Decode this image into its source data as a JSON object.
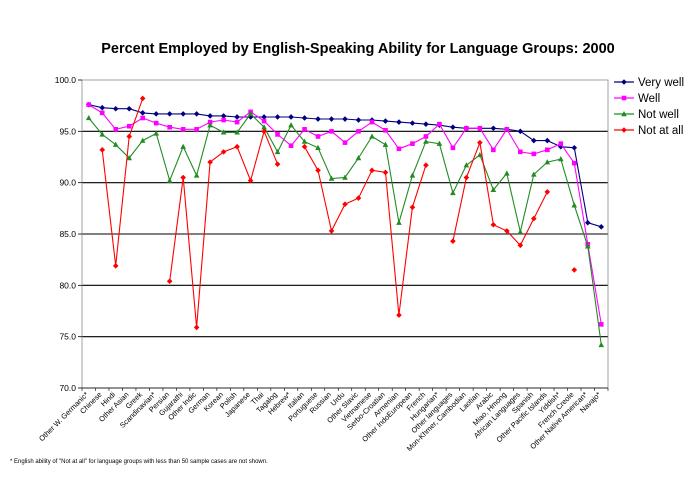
{
  "chart_data": {
    "type": "line",
    "title": "Percent Employed by English-Speaking Ability for Language Groups: 2000",
    "xlabel": "",
    "ylabel": "",
    "ylim": [
      70,
      100
    ],
    "yticks": [
      "70.0",
      "75.0",
      "80.0",
      "85.0",
      "90.0",
      "95.0",
      "100.0"
    ],
    "grid": "horizontal",
    "legend_position": "right",
    "categories": [
      "Other W. Germanic*",
      "Chinese",
      "Hindi",
      "Other Asian",
      "Greek",
      "Scandinavian*",
      "Persian",
      "Gujarathi",
      "Other Indic",
      "German",
      "Korean",
      "Polish",
      "Japanese",
      "Thai",
      "Tagalog",
      "Hebrew*",
      "Italian",
      "Portuguese",
      "Russian",
      "Urdu",
      "Other Slavic",
      "Vietnamese",
      "Serbo-Croatian",
      "Armenian",
      "Other IndoEuropean",
      "French",
      "Hungarian*",
      "Other languages",
      "Mon-Khmer, Cambodian",
      "Laotian",
      "Arabic",
      "Miao, Hmong",
      "African Languages",
      "Spanish",
      "Other Pacific Islands",
      "Yiddish*",
      "French Creole",
      "Other Native American*",
      "Navajo*"
    ],
    "series": [
      {
        "name": "Very well",
        "color": "#000080",
        "marker": "diamond",
        "values": [
          97.6,
          97.3,
          97.2,
          97.2,
          96.8,
          96.7,
          96.7,
          96.7,
          96.7,
          96.5,
          96.5,
          96.4,
          96.4,
          96.4,
          96.4,
          96.4,
          96.3,
          96.2,
          96.2,
          96.2,
          96.1,
          96.1,
          96.0,
          95.9,
          95.8,
          95.7,
          95.6,
          95.4,
          95.3,
          95.3,
          95.3,
          95.2,
          95.0,
          94.1,
          94.1,
          93.5,
          93.4,
          86.1,
          85.7
        ]
      },
      {
        "name": "Well",
        "color": "#FF00FF",
        "marker": "square",
        "values": [
          97.6,
          96.8,
          95.2,
          95.5,
          96.3,
          95.8,
          95.4,
          95.2,
          95.2,
          95.9,
          96.1,
          95.9,
          96.9,
          96.0,
          94.7,
          93.6,
          95.2,
          94.5,
          95.0,
          93.9,
          95.0,
          95.9,
          95.1,
          93.3,
          93.8,
          94.5,
          95.7,
          93.4,
          95.3,
          95.3,
          93.2,
          95.2,
          93.0,
          92.8,
          93.2,
          93.8,
          91.9,
          84.0,
          76.2
        ]
      },
      {
        "name": "Not well",
        "color": "#228B22",
        "marker": "triangle",
        "values": [
          96.3,
          94.7,
          93.7,
          92.4,
          94.1,
          94.8,
          90.2,
          93.5,
          90.7,
          95.6,
          94.9,
          94.9,
          96.7,
          95.4,
          93.0,
          95.6,
          94.0,
          93.4,
          90.4,
          90.5,
          92.4,
          94.5,
          93.7,
          86.1,
          90.7,
          94.0,
          93.8,
          89.0,
          91.7,
          92.7,
          89.3,
          90.9,
          85.2,
          90.8,
          92.0,
          92.3,
          87.8,
          83.8,
          74.2
        ]
      },
      {
        "name": "Not at all",
        "color": "#FF0000",
        "marker": "diamond",
        "values": [
          null,
          93.2,
          81.9,
          94.5,
          98.2,
          null,
          80.4,
          90.5,
          75.9,
          92.0,
          93.0,
          93.5,
          90.2,
          95.0,
          91.8,
          null,
          93.5,
          91.2,
          85.3,
          87.9,
          88.5,
          91.2,
          91.0,
          77.1,
          87.6,
          91.7,
          null,
          84.3,
          90.5,
          93.9,
          85.9,
          85.3,
          83.9,
          86.5,
          89.1,
          null,
          81.5,
          null,
          null
        ]
      }
    ],
    "footnote": "* English ability of \"Not at all\" for language groups with less than 50 sample cases are not shown."
  }
}
